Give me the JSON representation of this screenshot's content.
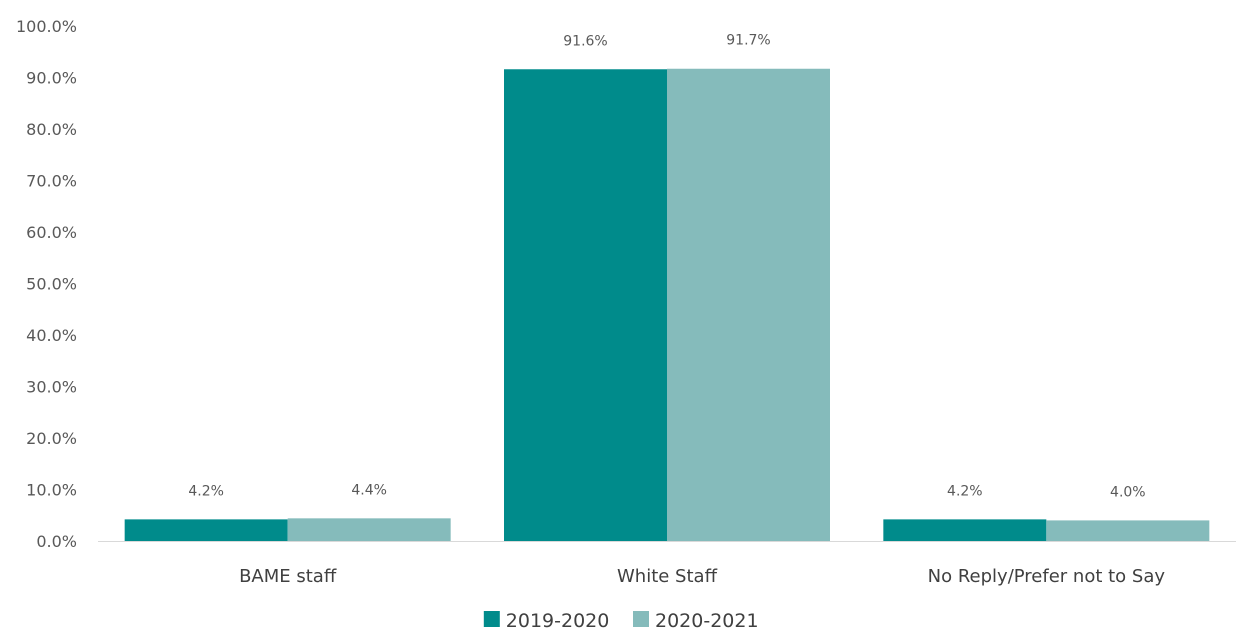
{
  "chart_data": {
    "type": "bar",
    "title": "",
    "xlabel": "",
    "ylabel": "",
    "categories": [
      "BAME staff",
      "White Staff",
      "No Reply/Prefer not to Say"
    ],
    "series": [
      {
        "name": "2019-2020",
        "values": [
          4.2,
          91.6,
          4.2
        ],
        "labels": [
          "4.2%",
          "91.6%",
          "4.2%"
        ],
        "color": "#008b8b"
      },
      {
        "name": "2020-2021",
        "values": [
          4.4,
          91.7,
          4.0
        ],
        "labels": [
          "4.4%",
          "91.7%",
          "4.0%"
        ],
        "color": "#85bbbb"
      }
    ],
    "ylim": [
      0,
      100
    ],
    "yticks": [
      0,
      10,
      20,
      30,
      40,
      50,
      60,
      70,
      80,
      90,
      100
    ],
    "ytick_labels": [
      "0.0%",
      "10.0%",
      "20.0%",
      "30.0%",
      "40.0%",
      "50.0%",
      "60.0%",
      "70.0%",
      "80.0%",
      "90.0%",
      "100.0%"
    ],
    "grid": false,
    "legend_position": "bottom"
  }
}
